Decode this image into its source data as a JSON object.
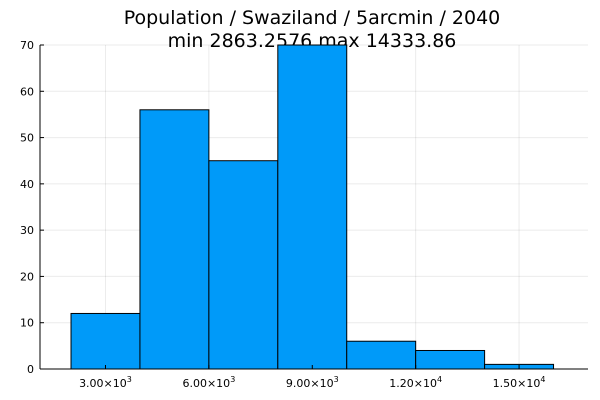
{
  "chart_data": {
    "type": "bar",
    "title": "Population / Swaziland / 5arcmin / 2040",
    "subtitle": "min 2863.2576  max 14333.86",
    "xlabel": "",
    "ylabel": "",
    "bin_edges": [
      2000,
      4000,
      6000,
      8000,
      10000,
      12000,
      14000,
      16000
    ],
    "values": [
      12,
      56,
      45,
      70,
      6,
      4,
      1
    ],
    "xlim": [
      1100,
      17000
    ],
    "ylim": [
      0,
      70
    ],
    "xticks": [
      {
        "value": 3000,
        "mantissa": "3.00",
        "base": "×10",
        "exp": "3"
      },
      {
        "value": 6000,
        "mantissa": "6.00",
        "base": "×10",
        "exp": "3"
      },
      {
        "value": 9000,
        "mantissa": "9.00",
        "base": "×10",
        "exp": "3"
      },
      {
        "value": 12000,
        "mantissa": "1.20",
        "base": "×10",
        "exp": "4"
      },
      {
        "value": 15000,
        "mantissa": "1.50",
        "base": "×10",
        "exp": "4"
      }
    ],
    "yticks": [
      0,
      10,
      20,
      30,
      40,
      50,
      60,
      70
    ],
    "grid": true,
    "legend": "none",
    "bar_color": "#009af9",
    "edge_color": "#000000"
  }
}
